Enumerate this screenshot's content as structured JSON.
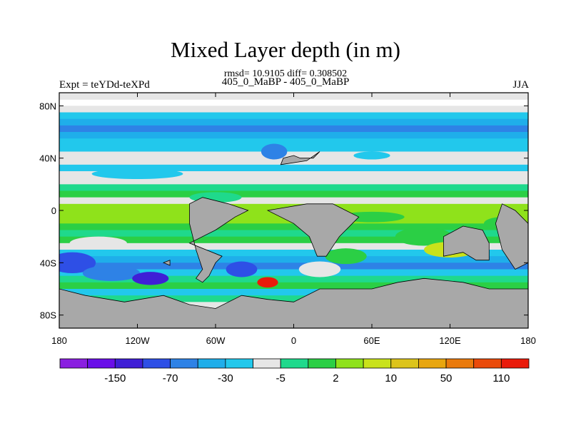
{
  "figure": {
    "title": "Mixed Layer depth (in m)",
    "rmsd_line": "rmsd= 10.9105 diff= 0.308502",
    "comparison": "405_0_MaBP - 405_0_MaBP",
    "experiment": "Expt = teYDd-teXPd",
    "season": "JJA"
  },
  "chart_data": {
    "type": "heatmap",
    "title": "Mixed Layer depth (in m)",
    "subtitle": "rmsd= 10.9105 diff= 0.308502",
    "x_ticks": [
      "180",
      "120W",
      "60W",
      "0",
      "60E",
      "120E",
      "180"
    ],
    "y_ticks": [
      "80N",
      "40N",
      "0",
      "40S",
      "80S"
    ],
    "xlim": [
      -180,
      180
    ],
    "ylim": [
      -90,
      90
    ],
    "colorbar": {
      "labels": [
        "-150",
        "-70",
        "-30",
        "-5",
        "2",
        "10",
        "50",
        "110"
      ],
      "colors": [
        "#8a1fe0",
        "#6a0ee8",
        "#3f1fd6",
        "#2e4fe6",
        "#2e82e6",
        "#1faeea",
        "#22c8ec",
        "#e6e6e6",
        "#1fd98c",
        "#2bcf45",
        "#8fe21b",
        "#c9e21b",
        "#dcc41b",
        "#e8a60f",
        "#ea7a0c",
        "#ea4a0a",
        "#ea1a0a"
      ]
    },
    "land_color": "#a8a8a8",
    "bands": [
      {
        "lat": 85,
        "color": "#e6e6e6"
      },
      {
        "lat": 75,
        "color": "#e6e6e6"
      },
      {
        "lat": 70,
        "color": "#22c8ec"
      },
      {
        "lat": 65,
        "color": "#1faeea"
      },
      {
        "lat": 60,
        "color": "#2e82e6"
      },
      {
        "lat": 55,
        "color": "#1faeea"
      },
      {
        "lat": 50,
        "color": "#22c8ec"
      },
      {
        "lat": 45,
        "color": "#22c8ec"
      },
      {
        "lat": 40,
        "color": "#e6e6e6"
      },
      {
        "lat": 35,
        "color": "#e6e6e6"
      },
      {
        "lat": 30,
        "color": "#22c8ec"
      },
      {
        "lat": 25,
        "color": "#e6e6e6"
      },
      {
        "lat": 20,
        "color": "#e6e6e6"
      },
      {
        "lat": 15,
        "color": "#1fd98c"
      },
      {
        "lat": 10,
        "color": "#2bcf45"
      },
      {
        "lat": 5,
        "color": "#e6e6e6"
      },
      {
        "lat": 0,
        "color": "#8fe21b"
      },
      {
        "lat": -5,
        "color": "#8fe21b"
      },
      {
        "lat": -10,
        "color": "#8fe21b"
      },
      {
        "lat": -15,
        "color": "#2bcf45"
      },
      {
        "lat": -20,
        "color": "#1fd98c"
      },
      {
        "lat": -25,
        "color": "#2bcf45"
      },
      {
        "lat": -30,
        "color": "#e6e6e6"
      },
      {
        "lat": -35,
        "color": "#22c8ec"
      },
      {
        "lat": -40,
        "color": "#1faeea"
      },
      {
        "lat": -45,
        "color": "#2e82e6"
      },
      {
        "lat": -50,
        "color": "#22c8ec"
      },
      {
        "lat": -55,
        "color": "#1fd98c"
      },
      {
        "lat": -60,
        "color": "#2bcf45"
      },
      {
        "lat": -65,
        "color": "#22c8ec"
      },
      {
        "lat": -70,
        "color": "#1fd98c"
      },
      {
        "lat": -75,
        "color": "#e6e6e6"
      },
      {
        "lat": -80,
        "color": "#e6e6e6"
      }
    ],
    "blobs": [
      {
        "lon": -170,
        "lat": -40,
        "rlon": 18,
        "rlat": 8,
        "color": "#2e4fe6"
      },
      {
        "lon": -140,
        "lat": -48,
        "rlon": 22,
        "rlat": 6,
        "color": "#2e82e6"
      },
      {
        "lon": -110,
        "lat": -52,
        "rlon": 14,
        "rlat": 5,
        "color": "#3f1fd6"
      },
      {
        "lon": -150,
        "lat": -25,
        "rlon": 22,
        "rlat": 5,
        "color": "#e6e6e6"
      },
      {
        "lon": -40,
        "lat": -45,
        "rlon": 12,
        "rlat": 6,
        "color": "#2e4fe6"
      },
      {
        "lon": -20,
        "lat": -55,
        "rlon": 8,
        "rlat": 4,
        "color": "#ea1a0a"
      },
      {
        "lon": 20,
        "lat": -45,
        "rlon": 16,
        "rlat": 6,
        "color": "#e6e6e6"
      },
      {
        "lon": 40,
        "lat": -35,
        "rlon": 16,
        "rlat": 6,
        "color": "#2bcf45"
      },
      {
        "lon": 100,
        "lat": -20,
        "rlon": 22,
        "rlat": 7,
        "color": "#2bcf45"
      },
      {
        "lon": 120,
        "lat": -30,
        "rlon": 20,
        "rlat": 6,
        "color": "#c9e21b"
      },
      {
        "lon": 160,
        "lat": -10,
        "rlon": 14,
        "rlat": 5,
        "color": "#2bcf45"
      },
      {
        "lon": -120,
        "lat": 28,
        "rlon": 35,
        "rlat": 4,
        "color": "#22c8ec"
      },
      {
        "lon": 60,
        "lat": 42,
        "rlon": 14,
        "rlat": 3,
        "color": "#22c8ec"
      },
      {
        "lon": -15,
        "lat": 45,
        "rlon": 10,
        "rlat": 6,
        "color": "#2e82e6"
      },
      {
        "lon": -60,
        "lat": 10,
        "rlon": 20,
        "rlat": 4,
        "color": "#1fd98c"
      },
      {
        "lon": 60,
        "lat": -5,
        "rlon": 25,
        "rlat": 4,
        "color": "#2bcf45"
      }
    ],
    "land": [
      [
        [
          -180,
          -90
        ],
        [
          180,
          -90
        ],
        [
          180,
          -60
        ],
        [
          150,
          -60
        ],
        [
          130,
          -55
        ],
        [
          100,
          -52
        ],
        [
          80,
          -55
        ],
        [
          60,
          -60
        ],
        [
          40,
          -60
        ],
        [
          20,
          -60
        ],
        [
          0,
          -70
        ],
        [
          -20,
          -68
        ],
        [
          -40,
          -65
        ],
        [
          -60,
          -75
        ],
        [
          -80,
          -72
        ],
        [
          -100,
          -65
        ],
        [
          -130,
          -70
        ],
        [
          -160,
          -65
        ],
        [
          -180,
          -60
        ]
      ],
      [
        [
          -80,
          -25
        ],
        [
          -60,
          -15
        ],
        [
          -45,
          -5
        ],
        [
          -35,
          0
        ],
        [
          -50,
          5
        ],
        [
          -70,
          10
        ],
        [
          -80,
          5
        ],
        [
          -80,
          -10
        ],
        [
          -75,
          -30
        ],
        [
          -70,
          -45
        ],
        [
          -75,
          -52
        ],
        [
          -70,
          -55
        ],
        [
          -65,
          -50
        ],
        [
          -60,
          -40
        ],
        [
          -55,
          -35
        ]
      ],
      [
        [
          -20,
          0
        ],
        [
          10,
          5
        ],
        [
          30,
          5
        ],
        [
          40,
          0
        ],
        [
          50,
          -5
        ],
        [
          35,
          -20
        ],
        [
          25,
          -35
        ],
        [
          18,
          -35
        ],
        [
          12,
          -20
        ],
        [
          0,
          -10
        ],
        [
          -10,
          -5
        ]
      ],
      [
        [
          115,
          -20
        ],
        [
          130,
          -12
        ],
        [
          145,
          -15
        ],
        [
          150,
          -25
        ],
        [
          150,
          -38
        ],
        [
          140,
          -38
        ],
        [
          130,
          -32
        ],
        [
          115,
          -35
        ]
      ],
      [
        [
          160,
          5
        ],
        [
          170,
          0
        ],
        [
          180,
          -10
        ],
        [
          180,
          -40
        ],
        [
          170,
          -45
        ],
        [
          160,
          -30
        ],
        [
          155,
          -10
        ]
      ],
      [
        [
          -10,
          35
        ],
        [
          10,
          38
        ],
        [
          20,
          45
        ],
        [
          15,
          40
        ],
        [
          5,
          40
        ],
        [
          0,
          42
        ],
        [
          -8,
          40
        ]
      ],
      [
        [
          -100,
          -40
        ],
        [
          -95,
          -42
        ],
        [
          -95,
          -38
        ]
      ]
    ]
  }
}
